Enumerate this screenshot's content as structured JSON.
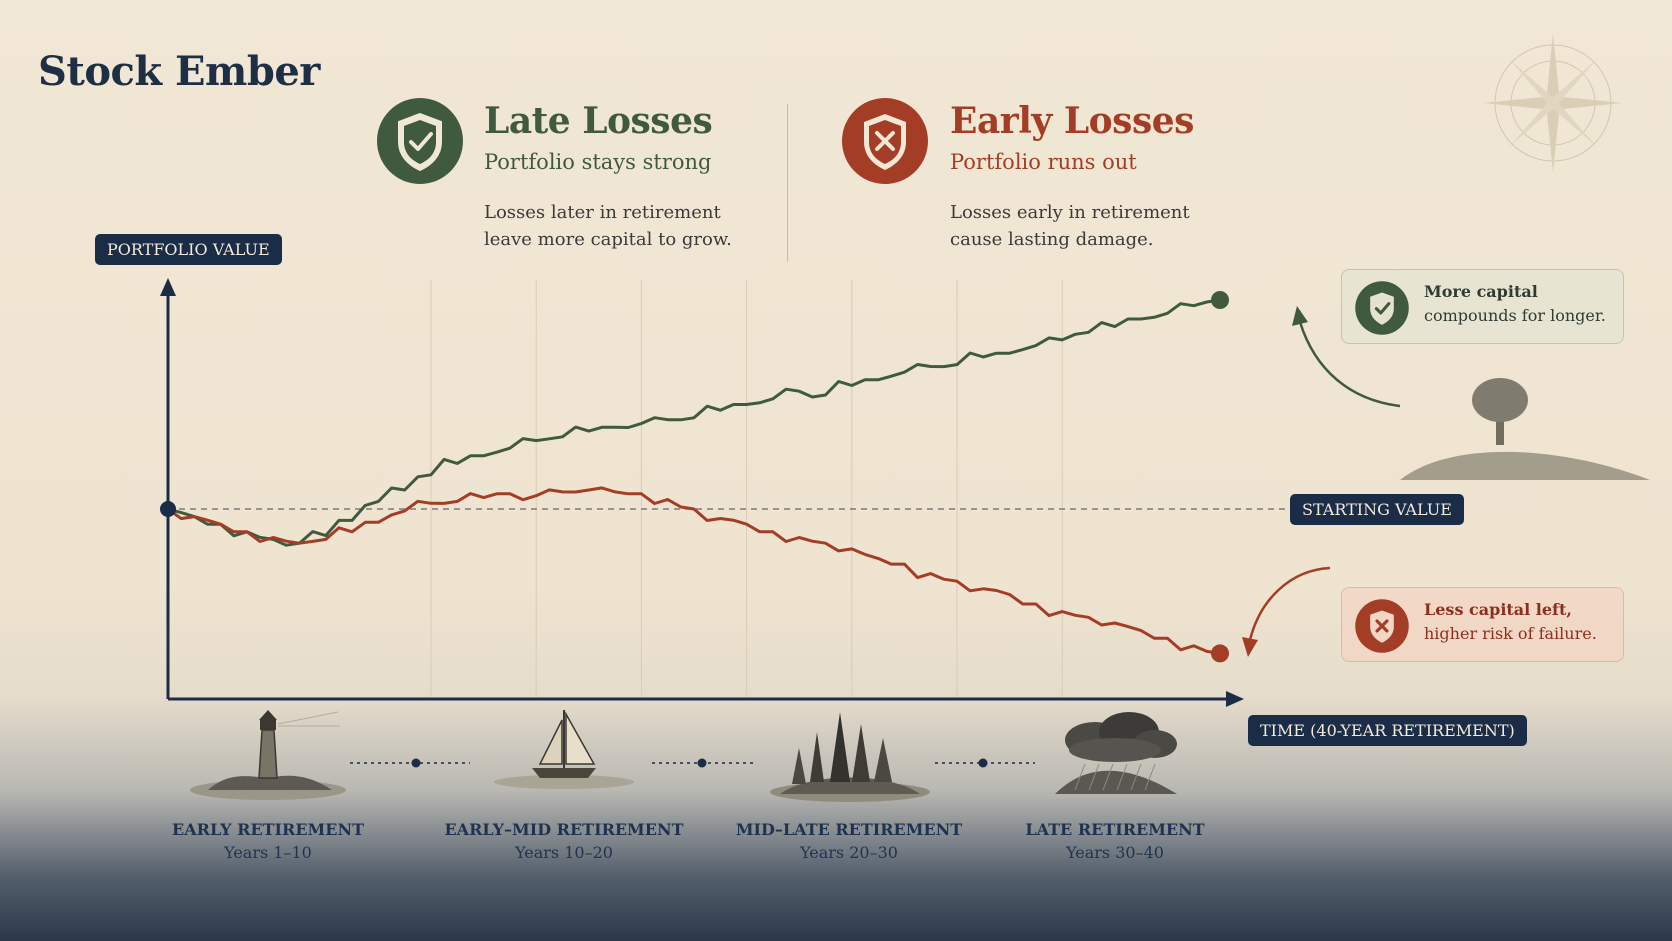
{
  "brand": "Stock Ember",
  "headers": {
    "late": {
      "title": "Late Losses",
      "subtitle": "Portfolio stays strong",
      "description": "Losses later in retirement leave more capital to grow."
    },
    "early": {
      "title": "Early Losses",
      "subtitle": "Portfolio runs out",
      "description": "Losses early in retirement cause lasting damage."
    }
  },
  "callouts": {
    "green": {
      "bold": "More capital",
      "text": "compounds for longer."
    },
    "red": {
      "bold": "Less capital left,",
      "text": "higher risk of failure."
    }
  },
  "phases": [
    {
      "name": "EARLY RETIREMENT",
      "years": "Years 1–10",
      "icon": "lighthouse-icon"
    },
    {
      "name": "EARLY–MID RETIREMENT",
      "years": "Years 10–20",
      "icon": "sailboat-icon"
    },
    {
      "name": "MID–LATE RETIREMENT",
      "years": "Years 20–30",
      "icon": "pine-trees-icon"
    },
    {
      "name": "LATE RETIREMENT",
      "years": "Years 30–40",
      "icon": "storm-cloud-icon"
    }
  ],
  "colors": {
    "green": "#3f5a3e",
    "red": "#a43d26",
    "navy": "#1b2c47"
  },
  "chart_data": {
    "type": "line",
    "ylabel": "PORTFOLIO VALUE",
    "xlabel": "TIME (40-YEAR RETIREMENT)",
    "reference_line": {
      "label": "STARTING VALUE",
      "y": 100
    },
    "xlim": [
      0,
      40
    ],
    "ylim": [
      0,
      230
    ],
    "grid": "vertical",
    "series": [
      {
        "name": "Late Losses",
        "color": "#3f5a3e",
        "x": [
          1,
          2,
          3,
          4,
          5,
          6,
          7,
          8,
          9,
          10,
          11,
          12,
          13,
          14,
          15,
          16,
          17,
          18,
          19,
          20,
          21,
          22,
          23,
          24,
          25,
          26,
          27,
          28,
          29,
          30,
          31,
          32,
          33,
          34,
          35,
          36,
          37,
          38,
          39,
          40
        ],
        "y": [
          96,
          92,
          88,
          84,
          82,
          86,
          94,
          104,
          110,
          118,
          124,
          128,
          132,
          136,
          138,
          141,
          143,
          145,
          147,
          148,
          152,
          155,
          158,
          162,
          160,
          165,
          168,
          172,
          175,
          176,
          180,
          182,
          186,
          189,
          193,
          196,
          200,
          203,
          207,
          210
        ]
      },
      {
        "name": "Early Losses",
        "color": "#a43d26",
        "x": [
          1,
          2,
          3,
          4,
          5,
          6,
          7,
          8,
          9,
          10,
          11,
          12,
          13,
          14,
          15,
          16,
          17,
          18,
          19,
          20,
          21,
          22,
          23,
          24,
          25,
          26,
          27,
          28,
          29,
          30,
          31,
          32,
          33,
          34,
          35,
          36,
          37,
          38,
          39,
          40
        ],
        "y": [
          96,
          92,
          88,
          85,
          82,
          84,
          88,
          93,
          99,
          103,
          104,
          106,
          108,
          107,
          109,
          110,
          109,
          108,
          105,
          100,
          95,
          92,
          88,
          85,
          82,
          79,
          74,
          71,
          66,
          62,
          58,
          55,
          50,
          46,
          43,
          40,
          36,
          32,
          28,
          24
        ]
      }
    ]
  }
}
